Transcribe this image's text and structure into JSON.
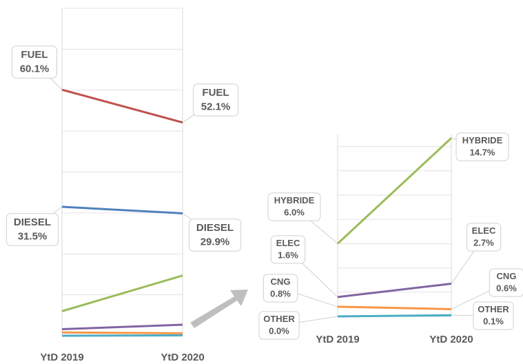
{
  "chart_data": [
    {
      "type": "line",
      "categories": [
        "YtD 2019",
        "YtD 2020"
      ],
      "ylim": [
        0,
        80
      ],
      "yticks": [
        0,
        10,
        20,
        30,
        40,
        50,
        60,
        70,
        80
      ],
      "grid": true,
      "series": [
        {
          "name": "FUEL",
          "color": "#c0504d",
          "values": [
            60.1,
            52.1
          ],
          "value_labels": [
            "60.1%",
            "52.1%"
          ]
        },
        {
          "name": "DIESEL",
          "color": "#4f81bd",
          "values": [
            31.5,
            29.9
          ],
          "value_labels": [
            "31.5%",
            "29.9%"
          ]
        },
        {
          "color": "#9bbb59",
          "values": [
            6.0,
            14.7
          ]
        },
        {
          "color": "#8064a2",
          "values": [
            1.6,
            2.7
          ]
        },
        {
          "color": "#f79646",
          "values": [
            0.8,
            0.6
          ]
        },
        {
          "color": "#4bacc6",
          "values": [
            0.0,
            0.1
          ]
        }
      ]
    },
    {
      "type": "line",
      "categories": [
        "YtD 2019",
        "YtD 2020"
      ],
      "ylim": [
        0,
        15
      ],
      "yticks": [
        0,
        2,
        4,
        6,
        8,
        10,
        12,
        14
      ],
      "grid": true,
      "series": [
        {
          "name": "HYBRIDE",
          "color": "#9bbb59",
          "values": [
            6.0,
            14.7
          ],
          "value_labels": [
            "6.0%",
            "14.7%"
          ]
        },
        {
          "name": "ELEC",
          "color": "#8064a2",
          "values": [
            1.6,
            2.7
          ],
          "value_labels": [
            "1.6%",
            "2.7%"
          ]
        },
        {
          "name": "CNG",
          "color": "#f79646",
          "values": [
            0.8,
            0.6
          ],
          "value_labels": [
            "0.8%",
            "0.6%"
          ]
        },
        {
          "name": "OTHER",
          "color": "#4bacc6",
          "values": [
            0.0,
            0.1
          ],
          "value_labels": [
            "0.0%",
            "0.1%"
          ]
        }
      ]
    }
  ]
}
